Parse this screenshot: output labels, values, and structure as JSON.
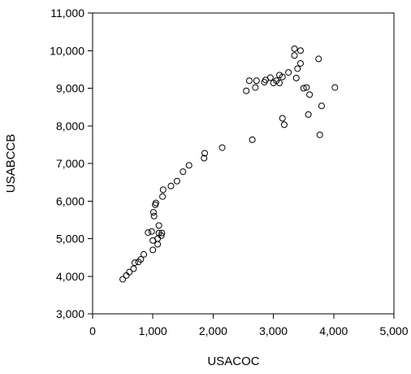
{
  "chart_data": {
    "type": "scatter",
    "xlabel": "USACOC",
    "ylabel": "USABCCB",
    "xlim": [
      0,
      5000
    ],
    "ylim": [
      3000,
      11000
    ],
    "x_ticks": [
      0,
      1000,
      2000,
      3000,
      4000,
      5000
    ],
    "x_tick_labels": [
      "0",
      "1,000",
      "2,000",
      "3,000",
      "4,000",
      "5,000"
    ],
    "y_ticks": [
      3000,
      4000,
      5000,
      6000,
      7000,
      8000,
      9000,
      10000,
      11000
    ],
    "y_tick_labels": [
      "3,000",
      "4,000",
      "5,000",
      "6,000",
      "7,000",
      "8,000",
      "9,000",
      "10,000",
      "11,000"
    ],
    "grid": false,
    "marker": "open-circle",
    "points": [
      [
        500,
        3920
      ],
      [
        560,
        4020
      ],
      [
        610,
        4110
      ],
      [
        680,
        4200
      ],
      [
        700,
        4360
      ],
      [
        760,
        4380
      ],
      [
        800,
        4450
      ],
      [
        850,
        4580
      ],
      [
        920,
        5160
      ],
      [
        980,
        5190
      ],
      [
        1000,
        4700
      ],
      [
        1000,
        4950
      ],
      [
        1020,
        5600
      ],
      [
        1010,
        5700
      ],
      [
        1040,
        5900
      ],
      [
        1050,
        5950
      ],
      [
        1080,
        4850
      ],
      [
        1080,
        5000
      ],
      [
        1100,
        5350
      ],
      [
        1100,
        5150
      ],
      [
        1140,
        5080
      ],
      [
        1150,
        5150
      ],
      [
        1160,
        6120
      ],
      [
        1170,
        6300
      ],
      [
        1300,
        6400
      ],
      [
        1400,
        6530
      ],
      [
        1500,
        6780
      ],
      [
        1600,
        6950
      ],
      [
        1850,
        7140
      ],
      [
        1860,
        7270
      ],
      [
        2150,
        7420
      ],
      [
        2550,
        8930
      ],
      [
        2600,
        9200
      ],
      [
        2650,
        7630
      ],
      [
        2700,
        9020
      ],
      [
        2720,
        9200
      ],
      [
        2850,
        9160
      ],
      [
        2870,
        9220
      ],
      [
        2950,
        9280
      ],
      [
        3000,
        9140
      ],
      [
        3050,
        9200
      ],
      [
        3100,
        9350
      ],
      [
        3100,
        9140
      ],
      [
        3150,
        9300
      ],
      [
        3150,
        8200
      ],
      [
        3180,
        8030
      ],
      [
        3250,
        9420
      ],
      [
        3350,
        10050
      ],
      [
        3350,
        9870
      ],
      [
        3380,
        9270
      ],
      [
        3400,
        9520
      ],
      [
        3450,
        10000
      ],
      [
        3450,
        9660
      ],
      [
        3500,
        9000
      ],
      [
        3550,
        9020
      ],
      [
        3580,
        8300
      ],
      [
        3600,
        8830
      ],
      [
        3750,
        9780
      ],
      [
        3770,
        7760
      ],
      [
        3800,
        8530
      ],
      [
        4020,
        9020
      ]
    ]
  }
}
